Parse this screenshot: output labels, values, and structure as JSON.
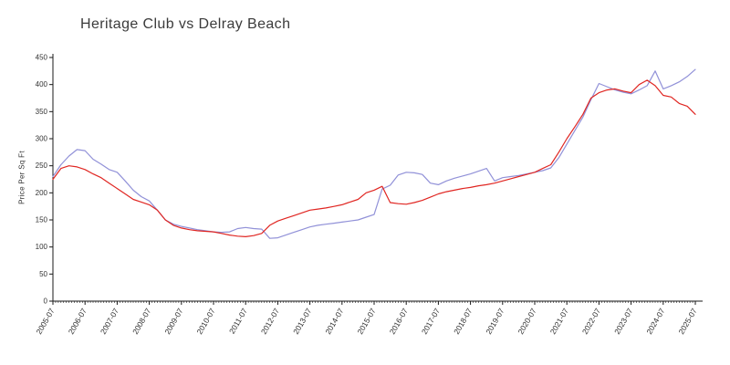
{
  "chart_data": {
    "type": "line",
    "title": "Heritage Club vs Delray Beach",
    "xlabel": "",
    "ylabel": "Price Per Sq Ft",
    "ylim": [
      0,
      450
    ],
    "y_ticks": [
      0,
      50,
      100,
      150,
      200,
      250,
      300,
      350,
      400,
      450
    ],
    "x_range": [
      2005.5,
      2025.5
    ],
    "x_tick_positions": [
      2005.5,
      2006.5,
      2007.5,
      2008.5,
      2009.5,
      2010.5,
      2011.5,
      2012.5,
      2013.5,
      2014.5,
      2015.5,
      2016.5,
      2017.5,
      2018.5,
      2019.5,
      2020.5,
      2021.5,
      2022.5,
      2023.5,
      2024.5,
      2025.5
    ],
    "x_tick_labels": [
      "2005-07",
      "2006-07",
      "2007-07",
      "2008-07",
      "2009-07",
      "2010-07",
      "2011-07",
      "2012-07",
      "2013-07",
      "2014-07",
      "2015-07",
      "2016-07",
      "2017-07",
      "2018-07",
      "2019-07",
      "2020-07",
      "2021-07",
      "2022-07",
      "2023-07",
      "2024-07",
      "2025-07"
    ],
    "grid": false,
    "legend": "none",
    "axis_color": "#1a1a1a",
    "tick_label_color": "#333333",
    "title_color": "#3b3b3b",
    "series": [
      {
        "name": "Heritage Club",
        "color": "#9191d8",
        "x_start": 2005.5,
        "x_step": 0.25,
        "values": [
          230,
          252,
          268,
          280,
          278,
          262,
          253,
          243,
          238,
          222,
          205,
          193,
          185,
          168,
          150,
          142,
          138,
          135,
          132,
          130,
          128,
          127,
          128,
          134,
          136,
          134,
          133,
          116,
          117,
          122,
          127,
          132,
          137,
          140,
          142,
          144,
          146,
          148,
          150,
          155,
          160,
          207,
          214,
          233,
          238,
          237,
          234,
          218,
          215,
          222,
          227,
          231,
          235,
          240,
          245,
          222,
          228,
          230,
          232,
          235,
          238,
          241,
          246,
          265,
          290,
          315,
          340,
          372,
          402,
          396,
          390,
          386,
          383,
          390,
          398,
          425,
          392,
          398,
          405,
          415,
          428
        ]
      },
      {
        "name": "Delray Beach",
        "color": "#e02622",
        "x_start": 2005.5,
        "x_step": 0.25,
        "values": [
          225,
          245,
          250,
          248,
          243,
          235,
          228,
          218,
          208,
          198,
          188,
          183,
          178,
          168,
          150,
          140,
          135,
          132,
          130,
          129,
          128,
          125,
          122,
          120,
          119,
          121,
          125,
          140,
          148,
          153,
          158,
          163,
          168,
          170,
          172,
          175,
          178,
          183,
          188,
          200,
          205,
          212,
          182,
          180,
          179,
          182,
          186,
          192,
          198,
          202,
          205,
          208,
          210,
          213,
          215,
          218,
          222,
          226,
          230,
          234,
          238,
          245,
          252,
          275,
          300,
          322,
          345,
          375,
          385,
          390,
          392,
          388,
          385,
          400,
          408,
          398,
          380,
          377,
          365,
          360,
          345
        ]
      }
    ]
  }
}
